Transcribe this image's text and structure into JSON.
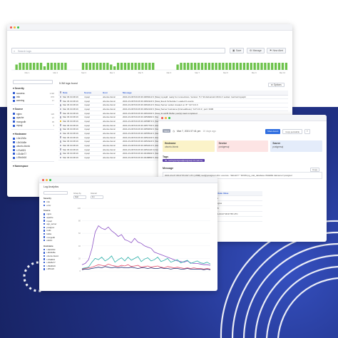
{
  "colors": {
    "accent": "#2f5bd2",
    "bar_green": "#6cc24a",
    "purple": "#8a4fc4",
    "teal": "#2ab0a8",
    "navy": "#1c2a70"
  },
  "window1": {
    "search_placeholder": "Search logs",
    "buttons": {
      "save": "Save",
      "manage": "Manage",
      "new_alert": "New Alert"
    },
    "histogram": [
      0,
      3,
      4,
      4,
      4,
      4,
      4,
      4,
      4,
      2,
      4,
      4,
      4,
      4,
      4,
      4,
      0,
      0,
      0,
      0,
      4,
      4,
      4,
      4,
      4,
      4,
      4,
      4,
      3,
      2,
      4,
      4,
      4,
      4,
      4,
      4,
      4,
      4,
      4,
      4,
      4,
      0,
      0,
      0,
      0,
      0,
      0,
      3,
      4,
      4,
      4,
      4,
      4,
      4,
      4,
      4,
      4,
      4,
      4,
      4,
      4,
      4,
      4,
      4,
      4,
      4,
      4,
      4,
      4,
      4,
      4,
      4,
      4,
      4,
      4,
      4,
      4,
      4,
      4
    ],
    "histogram_ticks": [
      "Mar 1",
      "Mar 2",
      "Mar 3",
      "Mar 4",
      "Mar 5",
      "Mar 6",
      "Mar 7",
      "Mar 8",
      "Mar 9",
      "Mar 10"
    ],
    "sidebar": {
      "sections": [
        {
          "title": "Severity",
          "items": [
            {
              "label": "success",
              "count": "2.9M"
            },
            {
              "label": "info",
              "count": "876"
            },
            {
              "label": "warning",
              "count": "17"
            }
          ]
        },
        {
          "title": "Source",
          "items": [
            {
              "label": "nginx",
              "count": "120"
            },
            {
              "label": "apache",
              "count": "21"
            },
            {
              "label": "mongodb",
              "count": "95"
            },
            {
              "label": "mysql",
              "count": "4"
            }
          ]
        },
        {
          "title": "Hostname",
          "items": [
            {
              "label": "i-0a12b3c",
              "count": ""
            },
            {
              "label": "i-0b34d5e",
              "count": ""
            },
            {
              "label": "ubuntu-bionic",
              "count": ""
            },
            {
              "label": "i-07a9f21",
              "count": ""
            },
            {
              "label": "i-02c8e77",
              "count": ""
            },
            {
              "label": "i-09d4b16",
              "count": ""
            }
          ]
        },
        {
          "title": "Namespace",
          "items": []
        }
      ]
    },
    "logs_found": "5.3M logs found",
    "options_label": "Options",
    "table": {
      "headers": [
        "Date",
        "Source",
        "Host",
        "Message"
      ],
      "rows": [
        {
          "date": "Mar 06 04:38:16",
          "source": "mysql",
          "host": "ubuntu-bionic",
          "message": "2021-03-09T20:26:36.006521Z 0 [Note] mysqld: ready for connections. Version: '5.7.33-0ubuntu0.18.04.1' socket: /var/run/mysqld",
          "flag": false
        },
        {
          "date": "Mar 06 04:38:16",
          "source": "mysql",
          "host": "ubuntu-bionic",
          "message": "2021-03-09T20:26:36.006432Z 0 [Note] Event Scheduler: Loaded 0 events",
          "flag": false
        },
        {
          "date": "Mar 06 04:38:16",
          "source": "mysql",
          "host": "ubuntu-bionic",
          "message": "2021-03-09T20:26:36.006321Z 0 [Note] Server socket created on IP: '127.0.0.1'.",
          "flag": false
        },
        {
          "date": "Mar 06 04:38:16",
          "source": "mysql",
          "host": "ubuntu-bionic",
          "message": "2021-03-09T20:26:36.006210Z 0 [Note] Server hostname (bind-address): '127.0.0.1'; port: 3306",
          "flag": false
        },
        {
          "date": "Mar 06 04:38:16",
          "source": "mysql",
          "host": "ubuntu-bionic",
          "message": "2021-03-09T20:26:36.006109Z 0 [Note] InnoDB: Buffer pool(s) load completed",
          "flag": false
        },
        {
          "date": "Mar 06 04:38:16",
          "source": "mysql",
          "host": "ubuntu-bionic",
          "message": "2021-03-09T20:26:36.005998Z 0 [Note] InnoDB: Loading buffer pool(s)",
          "flag": false
        },
        {
          "date": "Mar 06 04:38:16",
          "source": "mysql",
          "host": "ubuntu-bionic",
          "message": "2021-03-09T20:26:36.005887Z 0 [Note] InnoDB: Waiting for purge to start",
          "flag": true
        },
        {
          "date": "Mar 06 04:38:16",
          "source": "mysql",
          "host": "ubuntu-bionic",
          "message": "2021-03-09T20:26:36.005776Z 0 [Note] InnoDB: 5.7.33 started",
          "flag": false
        },
        {
          "date": "Mar 06 04:38:16",
          "source": "mysql",
          "host": "ubuntu-bionic",
          "message": "2021-03-09T20:26:36.005665Z 0 [Note] InnoDB: Creating shared tablespace",
          "flag": false
        },
        {
          "date": "Mar 06 04:38:16",
          "source": "mysql",
          "host": "ubuntu-bionic",
          "message": "2021-03-09T20:26:36.005554Z 0 [Note] InnoDB: Highest supported file format",
          "flag": false
        },
        {
          "date": "Mar 06 04:38:16",
          "source": "mysql",
          "host": "ubuntu-bionic",
          "message": "2021-03-09T20:26:36.005443Z 0 [Note] InnoDB: Removed temporary tablespace",
          "flag": false
        },
        {
          "date": "Mar 06 04:38:16",
          "source": "mysql",
          "host": "ubuntu-bionic",
          "message": "2021-03-09T20:26:36.005332Z 0 [Note] InnoDB: Completed initialization",
          "flag": false
        },
        {
          "date": "Mar 06 04:38:16",
          "source": "mysql",
          "host": "ubuntu-bionic",
          "message": "2021-03-09T20:26:36.005221Z 0 [Note] InnoDB: Initializing buffer pool",
          "flag": false
        },
        {
          "date": "Mar 06 04:38:16",
          "source": "mysql",
          "host": "ubuntu-bionic",
          "message": "2021-03-09T20:26:36.005110Z 0 [Note] InnoDB: Using CPU crc32",
          "flag": false
        },
        {
          "date": "Mar 06 04:38:16",
          "source": "mysql",
          "host": "ubuntu-bionic",
          "message": "2021-03-09T20:26:36.004999Z 0 [Note] InnoDB: Number of pools: 1",
          "flag": false
        },
        {
          "date": "Mar 06 04:38:16",
          "source": "mysql",
          "host": "ubuntu-bionic",
          "message": "2021-03-09T20:26:36.004888Z 0 [Note] InnoDB: Compressed tables use zlib",
          "flag": false
        }
      ]
    }
  },
  "window2": {
    "tag": "INFO",
    "timestamp": "Mar 7, 2021 07:41 pm",
    "ago": "10 days ago",
    "copy_link": "Copy permalink",
    "share_button": "Share Event",
    "expand_button": "»",
    "cards": [
      {
        "key": "Hostname",
        "value": "ubuntu-bionic"
      },
      {
        "key": "Service",
        "value": "postgresql"
      },
      {
        "key": "Source",
        "value": "postgresql"
      }
    ],
    "tags_title": "Tags",
    "pill": "file: /var/log/postgresql/postgresql-10-main.log",
    "message_title": "Message",
    "copy_label": "Copy",
    "message": "2021-03-07 08:47:55.497 UTC [1588] root@postgres LOG: execute : SELECT * FROM pg_stat_database WHERE datname='postgres'",
    "attributes_title": "Event Attributes",
    "attr_headers": [
      "Attribute Key",
      "Attribute Value"
    ],
    "attributes": [
      {
        "key": "log.level",
        "value": "LOG"
      },
      {
        "key": "postgresql.database",
        "value": "postgres"
      },
      {
        "key": "process.pid",
        "value": "1588"
      },
      {
        "key": "timestamp",
        "value": "2021-03-07 08:47:55 UTC"
      },
      {
        "key": "username",
        "value": "root"
      }
    ]
  },
  "window3": {
    "title": "Log Analytics",
    "controls": [
      {
        "label": "Group by",
        "value": "host"
      },
      {
        "label": "Interval",
        "value": "1m"
      }
    ],
    "sidebar": {
      "sections": [
        {
          "title": "Severity",
          "items": [
            {
              "label": "info"
            },
            {
              "label": "error"
            }
          ]
        },
        {
          "title": "Source",
          "items": [
            {
              "label": "nginx"
            },
            {
              "label": "apache"
            },
            {
              "label": "mysql"
            },
            {
              "label": "app_server"
            },
            {
              "label": "postgres"
            },
            {
              "label": "redis"
            },
            {
              "label": "kafka"
            },
            {
              "label": "mongodb"
            },
            {
              "label": "elastic"
            }
          ]
        },
        {
          "title": "Hostname",
          "items": [
            {
              "label": "i-0a12b3c"
            },
            {
              "label": "i-0b34d5e"
            },
            {
              "label": "ubuntu-bionic"
            },
            {
              "label": "i-07a9f21"
            },
            {
              "label": "i-02c8e77"
            },
            {
              "label": "i-09d4b16"
            },
            {
              "label": "i-0ff1122"
            }
          ]
        }
      ]
    }
  },
  "chart_data": {
    "type": "line",
    "x": [
      0,
      1,
      2,
      3,
      4,
      5,
      6,
      7,
      8,
      9,
      10,
      11,
      12,
      13,
      14,
      15,
      16,
      17,
      18,
      19,
      20,
      21,
      22,
      23,
      24,
      25,
      26,
      27,
      28,
      29,
      30,
      31,
      32,
      33,
      34,
      35,
      36,
      37,
      38,
      39
    ],
    "series": [
      {
        "color": "#8a4fc4",
        "values": [
          10,
          12,
          18,
          35,
          62,
          72,
          68,
          66,
          70,
          64,
          60,
          55,
          58,
          50,
          48,
          45,
          52,
          46,
          44,
          40,
          38,
          36,
          30,
          28,
          26,
          24,
          22,
          20,
          18,
          16,
          15,
          14,
          16,
          13,
          12,
          12,
          11,
          10,
          10,
          9
        ]
      },
      {
        "color": "#2ab0a8",
        "values": [
          4,
          5,
          6,
          14,
          20,
          18,
          22,
          16,
          19,
          24,
          14,
          18,
          21,
          16,
          22,
          17,
          20,
          23,
          15,
          19,
          21,
          16,
          18,
          22,
          15,
          17,
          20,
          14,
          16,
          18,
          13,
          15,
          17,
          12,
          14,
          16,
          13,
          12,
          14,
          11
        ]
      },
      {
        "color": "#e44b6a",
        "values": [
          3,
          4,
          5,
          6,
          8,
          10,
          9,
          8,
          11,
          9,
          8,
          7,
          9,
          8,
          10,
          7,
          8,
          9,
          6,
          7,
          8,
          6,
          7,
          8,
          6,
          5,
          7,
          6,
          5,
          6,
          5,
          4,
          5,
          4,
          5,
          4,
          4,
          3,
          4,
          3
        ]
      },
      {
        "color": "#1c2a70",
        "values": [
          2,
          3,
          3,
          4,
          5,
          6,
          5,
          7,
          6,
          5,
          6,
          5,
          6,
          5,
          5,
          6,
          5,
          4,
          5,
          5,
          4,
          5,
          4,
          4,
          5,
          4,
          4,
          3,
          4,
          4,
          3,
          3,
          4,
          3,
          3,
          3,
          3,
          2,
          3,
          2
        ]
      }
    ],
    "y_ticks": [
      "100",
      "80",
      "60",
      "40",
      "20",
      "0"
    ],
    "ylim": [
      0,
      100
    ]
  }
}
